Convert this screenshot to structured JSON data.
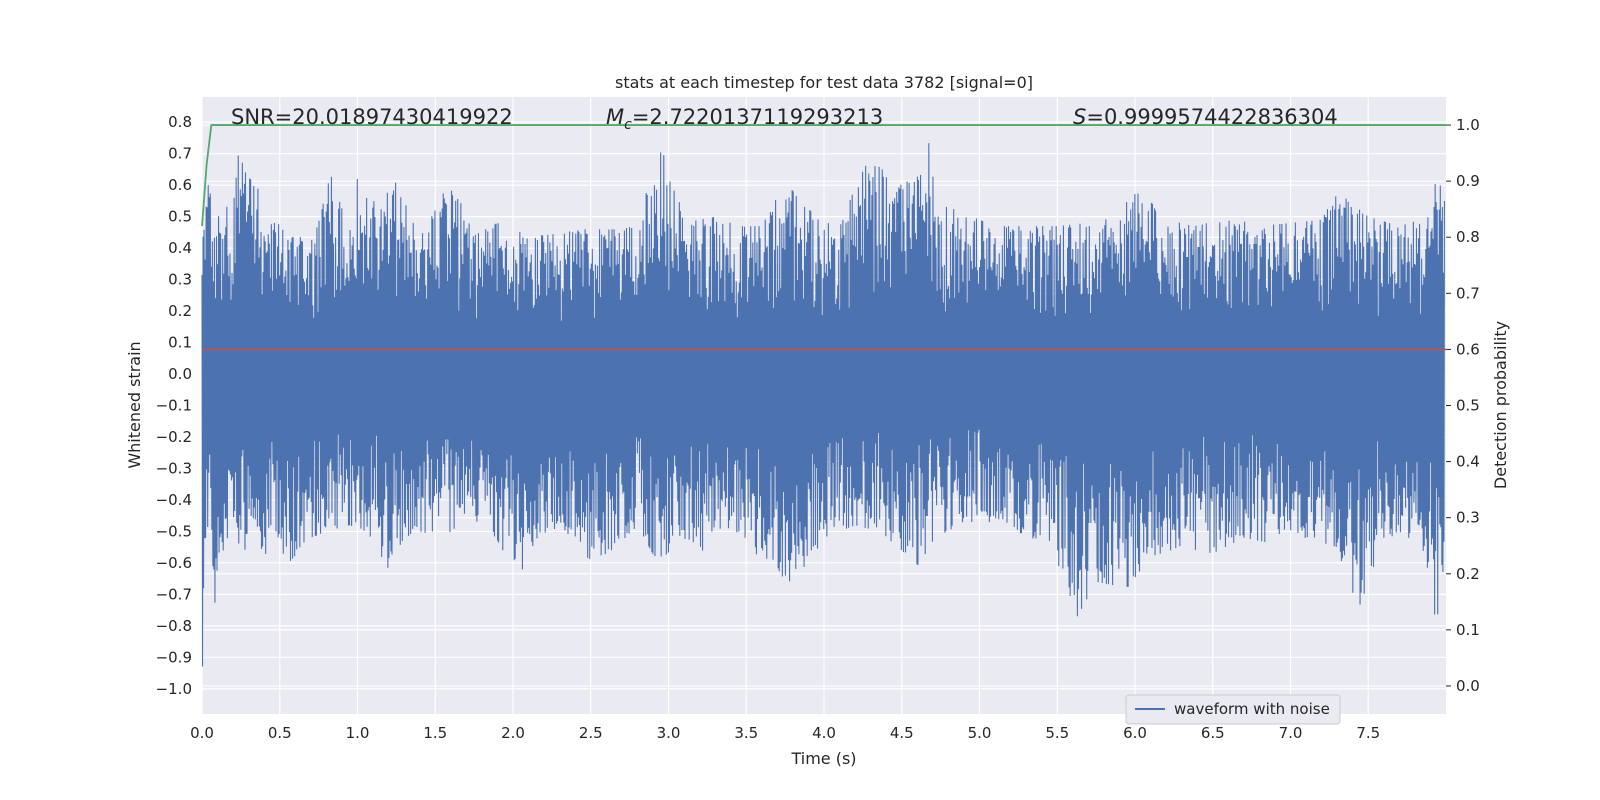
{
  "chart_data": {
    "type": "line",
    "title": "stats at each timestep for test data 3782 [signal=0]",
    "xlabel": "Time (s)",
    "ylabel": "Whitened strain",
    "y2label": "Detection probability",
    "xlim": [
      0.0,
      8.0
    ],
    "ylim": [
      -1.08,
      0.88
    ],
    "y2lim": [
      -0.05,
      1.05
    ],
    "xticks": [
      "0.0",
      "0.5",
      "1.0",
      "1.5",
      "2.0",
      "2.5",
      "3.0",
      "3.5",
      "4.0",
      "4.5",
      "5.0",
      "5.5",
      "6.0",
      "6.5",
      "7.0",
      "7.5"
    ],
    "yticks": [
      "0.8",
      "0.7",
      "0.6",
      "0.5",
      "0.4",
      "0.3",
      "0.2",
      "0.1",
      "0.0",
      "−0.1",
      "−0.2",
      "−0.3",
      "−0.4",
      "−0.5",
      "−0.6",
      "−0.7",
      "−0.8",
      "−0.9",
      "−1.0"
    ],
    "y2ticks": [
      "1.0",
      "0.9",
      "0.8",
      "0.7",
      "0.6",
      "0.5",
      "0.4",
      "0.3",
      "0.2",
      "0.1",
      "0.0"
    ],
    "annotations": {
      "snr_text": "SNR=20.01897430419922",
      "mc_symbol": "M",
      "mc_sub": "c",
      "mc_value": "=2.7220137119293213",
      "s_symbol": "S",
      "s_value": "=0.9999574422836304"
    },
    "legend": {
      "label": "waveform with noise",
      "position": "lower-right"
    },
    "threshold": {
      "value": 0.6,
      "color": "#c44e52"
    },
    "series": [
      {
        "name": "waveform with noise",
        "color": "#4c72b0",
        "kind": "noise",
        "envelope_upper": [
          [
            0.0,
            0.4
          ],
          [
            0.03,
            0.62
          ],
          [
            0.08,
            0.52
          ],
          [
            0.15,
            0.51
          ],
          [
            0.2,
            0.62
          ],
          [
            0.24,
            0.71
          ],
          [
            0.28,
            0.64
          ],
          [
            0.42,
            0.55
          ],
          [
            0.55,
            0.43
          ],
          [
            0.7,
            0.45
          ],
          [
            0.83,
            0.63
          ],
          [
            0.95,
            0.45
          ],
          [
            1.0,
            0.63
          ],
          [
            1.1,
            0.55
          ],
          [
            1.25,
            0.61
          ],
          [
            1.4,
            0.43
          ],
          [
            1.6,
            0.62
          ],
          [
            1.75,
            0.44
          ],
          [
            1.9,
            0.48
          ],
          [
            2.05,
            0.45
          ],
          [
            2.2,
            0.44
          ],
          [
            2.45,
            0.46
          ],
          [
            2.65,
            0.46
          ],
          [
            2.8,
            0.47
          ],
          [
            2.88,
            0.62
          ],
          [
            2.98,
            0.74
          ],
          [
            3.1,
            0.48
          ],
          [
            3.3,
            0.5
          ],
          [
            3.45,
            0.47
          ],
          [
            3.6,
            0.47
          ],
          [
            3.75,
            0.61
          ],
          [
            3.82,
            0.57
          ],
          [
            4.0,
            0.47
          ],
          [
            4.15,
            0.53
          ],
          [
            4.27,
            0.68
          ],
          [
            4.35,
            0.66
          ],
          [
            4.5,
            0.6
          ],
          [
            4.62,
            0.64
          ],
          [
            4.66,
            0.79
          ],
          [
            4.72,
            0.55
          ],
          [
            4.85,
            0.52
          ],
          [
            5.1,
            0.47
          ],
          [
            5.3,
            0.47
          ],
          [
            5.5,
            0.47
          ],
          [
            5.7,
            0.48
          ],
          [
            5.9,
            0.5
          ],
          [
            6.03,
            0.63
          ],
          [
            6.15,
            0.5
          ],
          [
            6.4,
            0.47
          ],
          [
            6.6,
            0.5
          ],
          [
            6.8,
            0.47
          ],
          [
            7.0,
            0.48
          ],
          [
            7.2,
            0.49
          ],
          [
            7.3,
            0.58
          ],
          [
            7.5,
            0.5
          ],
          [
            7.7,
            0.47
          ],
          [
            7.9,
            0.5
          ],
          [
            7.94,
            0.66
          ],
          [
            8.0,
            0.53
          ]
        ],
        "envelope_lower": [
          [
            0.0,
            -0.99
          ],
          [
            0.03,
            -0.46
          ],
          [
            0.08,
            -0.74
          ],
          [
            0.15,
            -0.52
          ],
          [
            0.22,
            -0.53
          ],
          [
            0.28,
            -0.56
          ],
          [
            0.4,
            -0.58
          ],
          [
            0.5,
            -0.52
          ],
          [
            0.54,
            -0.61
          ],
          [
            0.7,
            -0.52
          ],
          [
            0.8,
            -0.5
          ],
          [
            0.95,
            -0.48
          ],
          [
            1.0,
            -0.5
          ],
          [
            1.1,
            -0.52
          ],
          [
            1.19,
            -0.62
          ],
          [
            1.3,
            -0.52
          ],
          [
            1.4,
            -0.5
          ],
          [
            1.55,
            -0.52
          ],
          [
            1.7,
            -0.46
          ],
          [
            1.85,
            -0.5
          ],
          [
            2.02,
            -0.65
          ],
          [
            2.2,
            -0.52
          ],
          [
            2.4,
            -0.52
          ],
          [
            2.5,
            -0.6
          ],
          [
            2.7,
            -0.54
          ],
          [
            2.8,
            -0.48
          ],
          [
            2.93,
            -0.6
          ],
          [
            3.1,
            -0.52
          ],
          [
            3.2,
            -0.58
          ],
          [
            3.3,
            -0.48
          ],
          [
            3.5,
            -0.55
          ],
          [
            3.62,
            -0.6
          ],
          [
            3.75,
            -0.65
          ],
          [
            3.82,
            -0.67
          ],
          [
            4.0,
            -0.52
          ],
          [
            4.2,
            -0.48
          ],
          [
            4.35,
            -0.5
          ],
          [
            4.48,
            -0.55
          ],
          [
            4.6,
            -0.61
          ],
          [
            4.72,
            -0.52
          ],
          [
            4.9,
            -0.47
          ],
          [
            5.1,
            -0.47
          ],
          [
            5.3,
            -0.52
          ],
          [
            5.45,
            -0.53
          ],
          [
            5.63,
            -0.77
          ],
          [
            5.75,
            -0.66
          ],
          [
            5.95,
            -0.68
          ],
          [
            6.1,
            -0.58
          ],
          [
            6.3,
            -0.55
          ],
          [
            6.5,
            -0.57
          ],
          [
            6.7,
            -0.52
          ],
          [
            6.9,
            -0.54
          ],
          [
            7.1,
            -0.52
          ],
          [
            7.3,
            -0.55
          ],
          [
            7.43,
            -0.76
          ],
          [
            7.6,
            -0.52
          ],
          [
            7.8,
            -0.52
          ],
          [
            7.94,
            -0.79
          ],
          [
            8.0,
            -0.55
          ]
        ]
      },
      {
        "name": "detection probability",
        "color": "#55a868",
        "axis": "right",
        "points": [
          [
            0.0,
            0.82
          ],
          [
            0.03,
            0.93
          ],
          [
            0.06,
            1.0
          ],
          [
            8.0,
            1.0
          ]
        ]
      }
    ]
  }
}
